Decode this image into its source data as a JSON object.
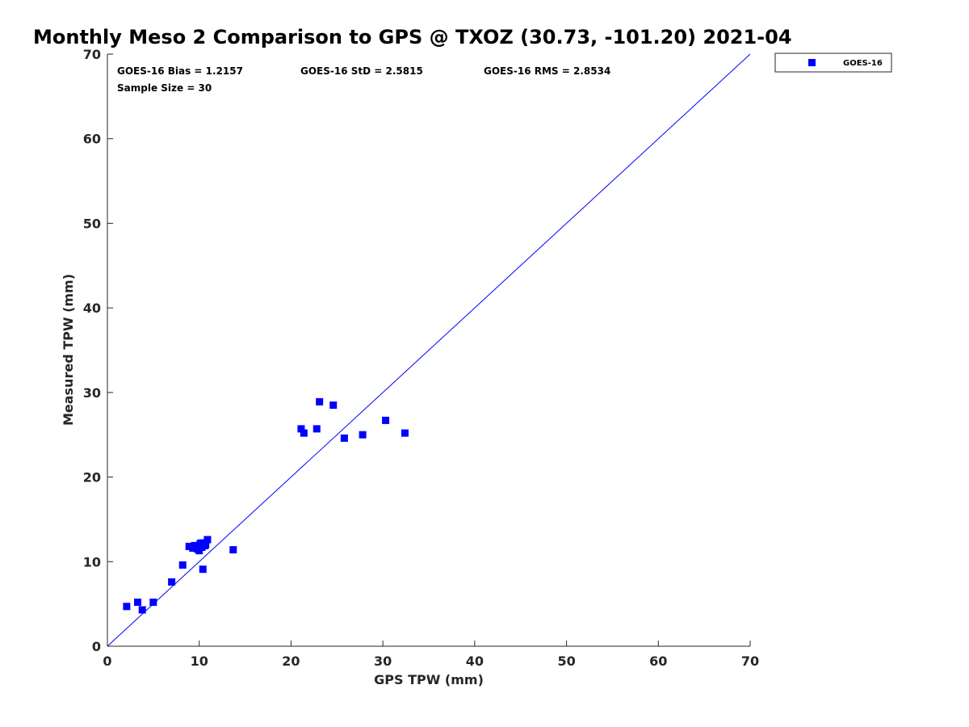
{
  "chart_data": {
    "type": "scatter",
    "title": "Monthly Meso 2 Comparison to GPS @ TXOZ (30.73, -101.20) 2021-04",
    "xlabel": "GPS TPW (mm)",
    "ylabel": "Measured TPW (mm)",
    "xlim": [
      0,
      70
    ],
    "ylim": [
      0,
      70
    ],
    "xticks": [
      0,
      10,
      20,
      30,
      40,
      50,
      60,
      70
    ],
    "yticks": [
      0,
      10,
      20,
      30,
      40,
      50,
      60,
      70
    ],
    "grid": false,
    "legend_position": "outside-top-right",
    "stats": [
      "GOES-16 Bias = 1.2157",
      "GOES-16 StD = 2.5815",
      "GOES-16 RMS = 2.8534",
      "Sample Size = 30"
    ],
    "reference_line": {
      "x": [
        0,
        70
      ],
      "y": [
        0,
        70
      ],
      "color": "#0000ff"
    },
    "series": [
      {
        "name": "GOES-16",
        "color": "#0000ff",
        "marker": "square",
        "points": [
          [
            2.1,
            4.7
          ],
          [
            3.3,
            5.2
          ],
          [
            3.8,
            4.3
          ],
          [
            5.0,
            5.2
          ],
          [
            7.0,
            7.6
          ],
          [
            8.2,
            9.6
          ],
          [
            8.9,
            11.8
          ],
          [
            9.3,
            11.6
          ],
          [
            9.5,
            11.9
          ],
          [
            9.8,
            11.5
          ],
          [
            10.0,
            11.3
          ],
          [
            10.1,
            12.1
          ],
          [
            10.3,
            11.7
          ],
          [
            10.5,
            12.2
          ],
          [
            10.7,
            12.0
          ],
          [
            10.9,
            12.6
          ],
          [
            10.4,
            9.1
          ],
          [
            13.7,
            11.4
          ],
          [
            21.1,
            25.7
          ],
          [
            21.4,
            25.2
          ],
          [
            22.8,
            25.7
          ],
          [
            23.1,
            28.9
          ],
          [
            24.6,
            28.5
          ],
          [
            25.8,
            24.6
          ],
          [
            27.8,
            25.0
          ],
          [
            30.3,
            26.7
          ],
          [
            32.4,
            25.2
          ],
          [
            9.6,
            11.6
          ],
          [
            10.2,
            12.2
          ],
          [
            10.6,
            11.9
          ]
        ]
      }
    ]
  }
}
